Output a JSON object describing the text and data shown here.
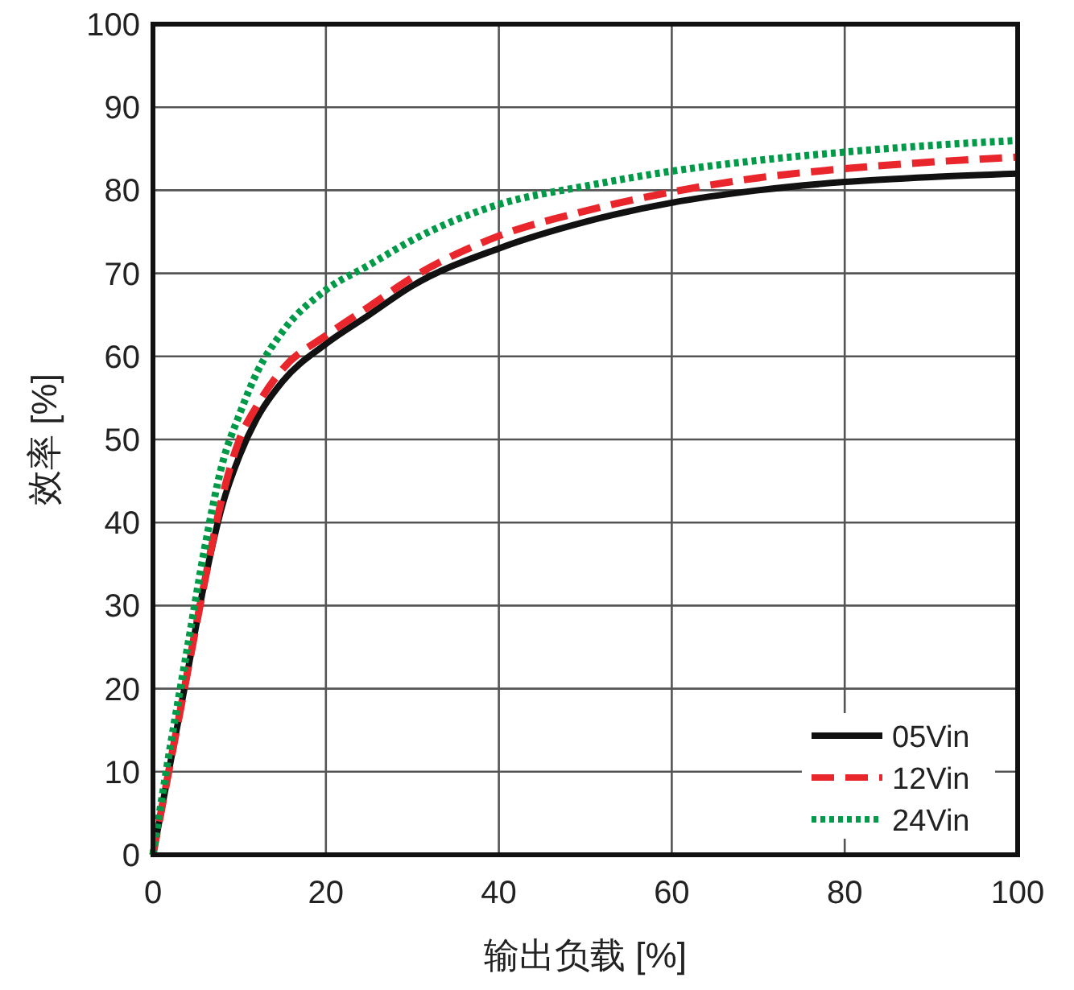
{
  "chart_data": {
    "type": "line",
    "xlabel": "输出负载 [%]",
    "ylabel": "效率 [%]",
    "xlim": [
      0,
      100
    ],
    "ylim": [
      0,
      100
    ],
    "xticks": [
      0,
      20,
      40,
      60,
      80,
      100
    ],
    "yticks": [
      0,
      10,
      20,
      30,
      40,
      50,
      60,
      70,
      80,
      90,
      100
    ],
    "grid": true,
    "legend": "bottom right",
    "x": [
      0,
      2,
      4,
      6,
      8,
      10,
      12,
      15,
      20,
      25,
      30,
      40,
      50,
      60,
      70,
      80,
      90,
      100
    ],
    "series": [
      {
        "name": "05Vin",
        "color": "#111111",
        "line_style": "solid",
        "values": [
          0,
          11,
          22,
          33,
          42,
          48,
          52.5,
          57,
          61.5,
          65,
          68.5,
          73,
          76.2,
          78.5,
          80,
          81,
          81.6,
          82
        ]
      },
      {
        "name": "12Vin",
        "color": "#e8262b",
        "line_style": "dashed",
        "values": [
          0,
          11,
          22,
          33,
          43,
          50,
          54,
          58.5,
          62.5,
          66,
          69.5,
          74.5,
          77.5,
          79.8,
          81.5,
          82.6,
          83.4,
          84
        ]
      },
      {
        "name": "24Vin",
        "color": "#009a48",
        "line_style": "dotted",
        "values": [
          0,
          13,
          25,
          37,
          47,
          53,
          58,
          63,
          68,
          71,
          74,
          78.3,
          80.5,
          82.3,
          83.6,
          84.6,
          85.4,
          86
        ]
      }
    ]
  }
}
